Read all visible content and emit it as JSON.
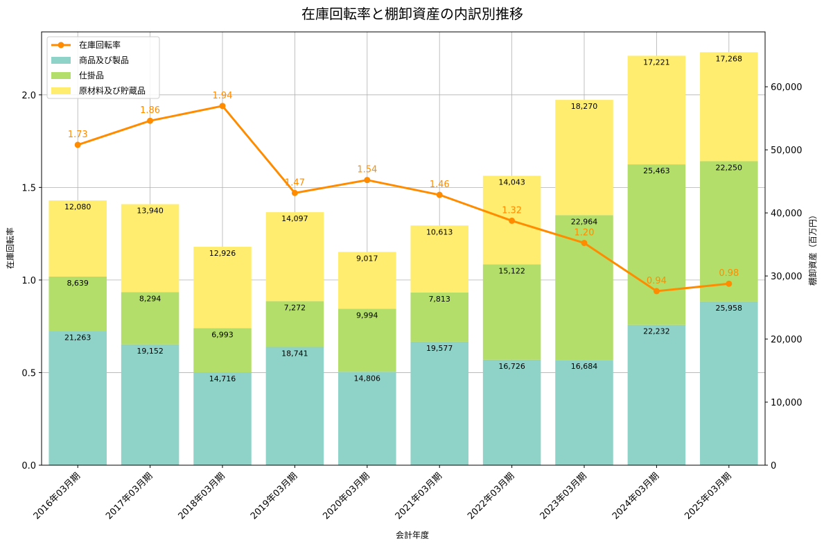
{
  "chart_data": {
    "type": "bar+line",
    "title": "在庫回転率と棚卸資産の内訳別推移",
    "xlabel": "会計年度",
    "ylabel_left": "在庫回転率",
    "ylabel_right": "棚卸資産（百万円）",
    "categories": [
      "2016年03月期",
      "2017年03月期",
      "2018年03月期",
      "2019年03月期",
      "2020年03月期",
      "2021年03月期",
      "2022年03月期",
      "2023年03月期",
      "2024年03月期",
      "2025年03月期"
    ],
    "series": [
      {
        "name": "商品及び製品",
        "type": "bar",
        "axis": "right",
        "color": "#8fd3c8",
        "values": [
          21263,
          19152,
          14716,
          18741,
          14806,
          19577,
          16726,
          16684,
          22232,
          25958
        ],
        "labels": [
          "21,263",
          "19,152",
          "14,716",
          "18,741",
          "14,806",
          "19,577",
          "16,726",
          "16,684",
          "22,232",
          "25,958"
        ]
      },
      {
        "name": "仕掛品",
        "type": "bar",
        "axis": "right",
        "color": "#b3de69",
        "values": [
          8639,
          8294,
          6993,
          7272,
          9994,
          7813,
          15122,
          22964,
          25463,
          22250
        ],
        "labels": [
          "8,639",
          "8,294",
          "6,993",
          "7,272",
          "9,994",
          "7,813",
          "15,122",
          "22,964",
          "25,463",
          "22,250"
        ]
      },
      {
        "name": "原材料及び貯蔵品",
        "type": "bar",
        "axis": "right",
        "color": "#ffed6f",
        "values": [
          12080,
          13940,
          12926,
          14097,
          9017,
          10613,
          14043,
          18270,
          17221,
          17268
        ],
        "labels": [
          "12,080",
          "13,940",
          "12,926",
          "14,097",
          "9,017",
          "10,613",
          "14,043",
          "18,270",
          "17,221",
          "17,268"
        ]
      },
      {
        "name": "在庫回転率",
        "type": "line",
        "axis": "left",
        "color": "#ff8c00",
        "values": [
          1.73,
          1.86,
          1.94,
          1.47,
          1.54,
          1.46,
          1.32,
          1.2,
          0.94,
          0.98
        ],
        "labels": [
          "1.73",
          "1.86",
          "1.94",
          "1.47",
          "1.54",
          "1.46",
          "1.32",
          "1.20",
          "0.94",
          "0.98"
        ]
      }
    ],
    "ylim_left": [
      0,
      2.34
    ],
    "yticks_left": [
      "0.0",
      "0.5",
      "1.0",
      "1.5",
      "2.0"
    ],
    "ylim_right": [
      0,
      68700
    ],
    "yticks_right": [
      "0",
      "10,000",
      "20,000",
      "30,000",
      "40,000",
      "50,000",
      "60,000"
    ],
    "grid": true,
    "legend": "top-left",
    "legend_order": [
      "在庫回転率",
      "商品及び製品",
      "仕掛品",
      "原材料及び貯蔵品"
    ]
  }
}
